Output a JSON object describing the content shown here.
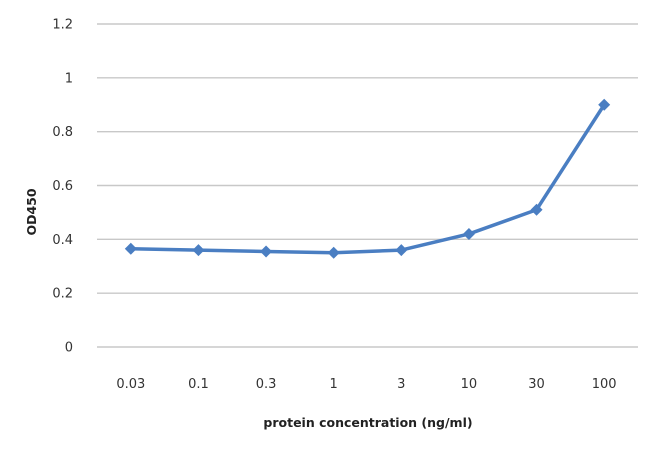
{
  "chart_data": {
    "type": "line",
    "title": "",
    "xlabel": "protein concentration (ng/ml)",
    "ylabel": "OD450",
    "categories": [
      "0.03",
      "0.1",
      "0.3",
      "1",
      "3",
      "10",
      "30",
      "100"
    ],
    "series": [
      {
        "values": [
          0.365,
          0.36,
          0.355,
          0.35,
          0.36,
          0.42,
          0.51,
          0.9
        ]
      }
    ],
    "ylim": [
      0,
      1.2
    ],
    "yticks": [
      0,
      0.2,
      0.4,
      0.6,
      0.8,
      1,
      1.2
    ],
    "ytick_labels": [
      "0",
      "0.2",
      "0.4",
      "0.6",
      "0.8",
      "1",
      "1.2"
    ],
    "grid": true,
    "legend": "none",
    "colors": {
      "series": "#4a7ec2",
      "grid": "#c8c8c8"
    },
    "marker": "diamond"
  }
}
